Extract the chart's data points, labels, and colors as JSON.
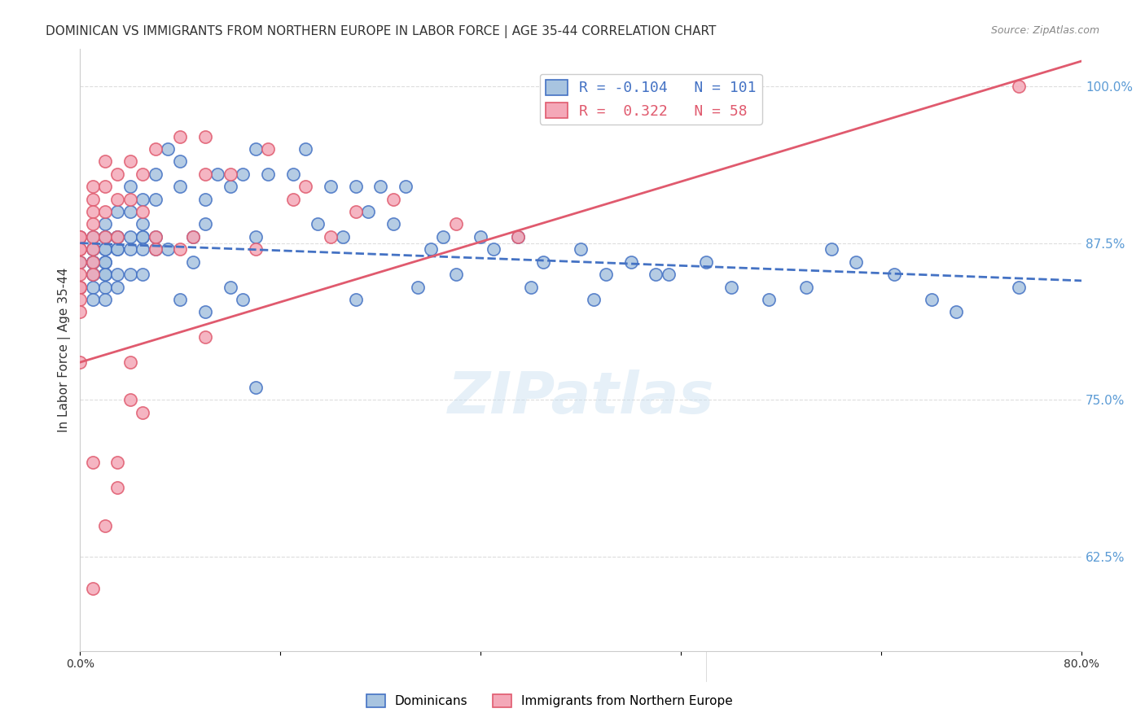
{
  "title": "DOMINICAN VS IMMIGRANTS FROM NORTHERN EUROPE IN LABOR FORCE | AGE 35-44 CORRELATION CHART",
  "source": "Source: ZipAtlas.com",
  "xlabel_bottom": "",
  "ylabel": "In Labor Force | Age 35-44",
  "right_ytick_labels": [
    "100.0%",
    "87.5%",
    "75.0%",
    "62.5%"
  ],
  "right_ytick_values": [
    1.0,
    0.875,
    0.75,
    0.625
  ],
  "bottom_xtick_labels": [
    "0.0%",
    "",
    "",
    "",
    "",
    "80.0%"
  ],
  "xmin": 0.0,
  "xmax": 0.8,
  "ymin": 0.55,
  "ymax": 1.03,
  "blue_R": -0.104,
  "blue_N": 101,
  "pink_R": 0.322,
  "pink_N": 58,
  "blue_color": "#a8c4e0",
  "pink_color": "#f4a8b8",
  "blue_line_color": "#4472c4",
  "pink_line_color": "#e05a6e",
  "legend_blue_label": "Dominicans",
  "legend_pink_label": "Immigrants from Northern Europe",
  "watermark": "ZIPatlas",
  "blue_scatter_x": [
    0.0,
    0.0,
    0.0,
    0.01,
    0.01,
    0.01,
    0.01,
    0.01,
    0.01,
    0.01,
    0.01,
    0.01,
    0.01,
    0.02,
    0.02,
    0.02,
    0.02,
    0.02,
    0.02,
    0.02,
    0.02,
    0.02,
    0.02,
    0.02,
    0.03,
    0.03,
    0.03,
    0.03,
    0.03,
    0.03,
    0.03,
    0.04,
    0.04,
    0.04,
    0.04,
    0.04,
    0.05,
    0.05,
    0.05,
    0.05,
    0.05,
    0.05,
    0.06,
    0.06,
    0.06,
    0.06,
    0.07,
    0.07,
    0.08,
    0.08,
    0.08,
    0.09,
    0.09,
    0.1,
    0.1,
    0.1,
    0.11,
    0.12,
    0.12,
    0.13,
    0.13,
    0.14,
    0.14,
    0.14,
    0.15,
    0.17,
    0.18,
    0.19,
    0.2,
    0.21,
    0.22,
    0.22,
    0.23,
    0.24,
    0.25,
    0.26,
    0.27,
    0.28,
    0.29,
    0.3,
    0.32,
    0.33,
    0.35,
    0.36,
    0.37,
    0.4,
    0.41,
    0.42,
    0.44,
    0.46,
    0.47,
    0.5,
    0.52,
    0.55,
    0.58,
    0.6,
    0.62,
    0.65,
    0.68,
    0.7,
    0.75
  ],
  "blue_scatter_y": [
    0.88,
    0.86,
    0.84,
    0.88,
    0.87,
    0.87,
    0.86,
    0.86,
    0.86,
    0.85,
    0.85,
    0.84,
    0.83,
    0.89,
    0.88,
    0.88,
    0.87,
    0.87,
    0.86,
    0.86,
    0.85,
    0.85,
    0.84,
    0.83,
    0.9,
    0.88,
    0.88,
    0.87,
    0.87,
    0.85,
    0.84,
    0.92,
    0.9,
    0.88,
    0.87,
    0.85,
    0.91,
    0.89,
    0.88,
    0.88,
    0.87,
    0.85,
    0.93,
    0.91,
    0.88,
    0.87,
    0.95,
    0.87,
    0.94,
    0.92,
    0.83,
    0.88,
    0.86,
    0.91,
    0.89,
    0.82,
    0.93,
    0.92,
    0.84,
    0.93,
    0.83,
    0.95,
    0.88,
    0.76,
    0.93,
    0.93,
    0.95,
    0.89,
    0.92,
    0.88,
    0.92,
    0.83,
    0.9,
    0.92,
    0.89,
    0.92,
    0.84,
    0.87,
    0.88,
    0.85,
    0.88,
    0.87,
    0.88,
    0.84,
    0.86,
    0.87,
    0.83,
    0.85,
    0.86,
    0.85,
    0.85,
    0.86,
    0.84,
    0.83,
    0.84,
    0.87,
    0.86,
    0.85,
    0.83,
    0.82,
    0.84
  ],
  "pink_scatter_x": [
    0.0,
    0.0,
    0.0,
    0.0,
    0.0,
    0.0,
    0.0,
    0.0,
    0.0,
    0.0,
    0.0,
    0.01,
    0.01,
    0.01,
    0.01,
    0.01,
    0.01,
    0.01,
    0.01,
    0.01,
    0.01,
    0.02,
    0.02,
    0.02,
    0.02,
    0.02,
    0.03,
    0.03,
    0.03,
    0.03,
    0.03,
    0.04,
    0.04,
    0.04,
    0.04,
    0.05,
    0.05,
    0.05,
    0.06,
    0.06,
    0.06,
    0.08,
    0.08,
    0.09,
    0.1,
    0.1,
    0.1,
    0.12,
    0.14,
    0.15,
    0.17,
    0.18,
    0.2,
    0.22,
    0.25,
    0.3,
    0.35,
    0.75
  ],
  "pink_scatter_y": [
    0.88,
    0.88,
    0.87,
    0.87,
    0.86,
    0.85,
    0.84,
    0.84,
    0.83,
    0.82,
    0.78,
    0.92,
    0.91,
    0.9,
    0.89,
    0.88,
    0.87,
    0.86,
    0.85,
    0.7,
    0.6,
    0.94,
    0.92,
    0.9,
    0.88,
    0.65,
    0.93,
    0.91,
    0.88,
    0.7,
    0.68,
    0.94,
    0.91,
    0.78,
    0.75,
    0.93,
    0.9,
    0.74,
    0.95,
    0.88,
    0.87,
    0.96,
    0.87,
    0.88,
    0.96,
    0.93,
    0.8,
    0.93,
    0.87,
    0.95,
    0.91,
    0.92,
    0.88,
    0.9,
    0.91,
    0.89,
    0.88,
    1.0
  ],
  "blue_trendline_x": [
    0.0,
    0.8
  ],
  "blue_trendline_y": [
    0.875,
    0.845
  ],
  "pink_trendline_x": [
    0.0,
    0.8
  ],
  "pink_trendline_y": [
    0.78,
    1.02
  ],
  "grid_color": "#dddddd",
  "background_color": "#ffffff",
  "title_fontsize": 11,
  "axis_label_color": "#5b9bd5",
  "tick_label_color_right": "#5b9bd5",
  "tick_label_color_bottom": "#333333"
}
